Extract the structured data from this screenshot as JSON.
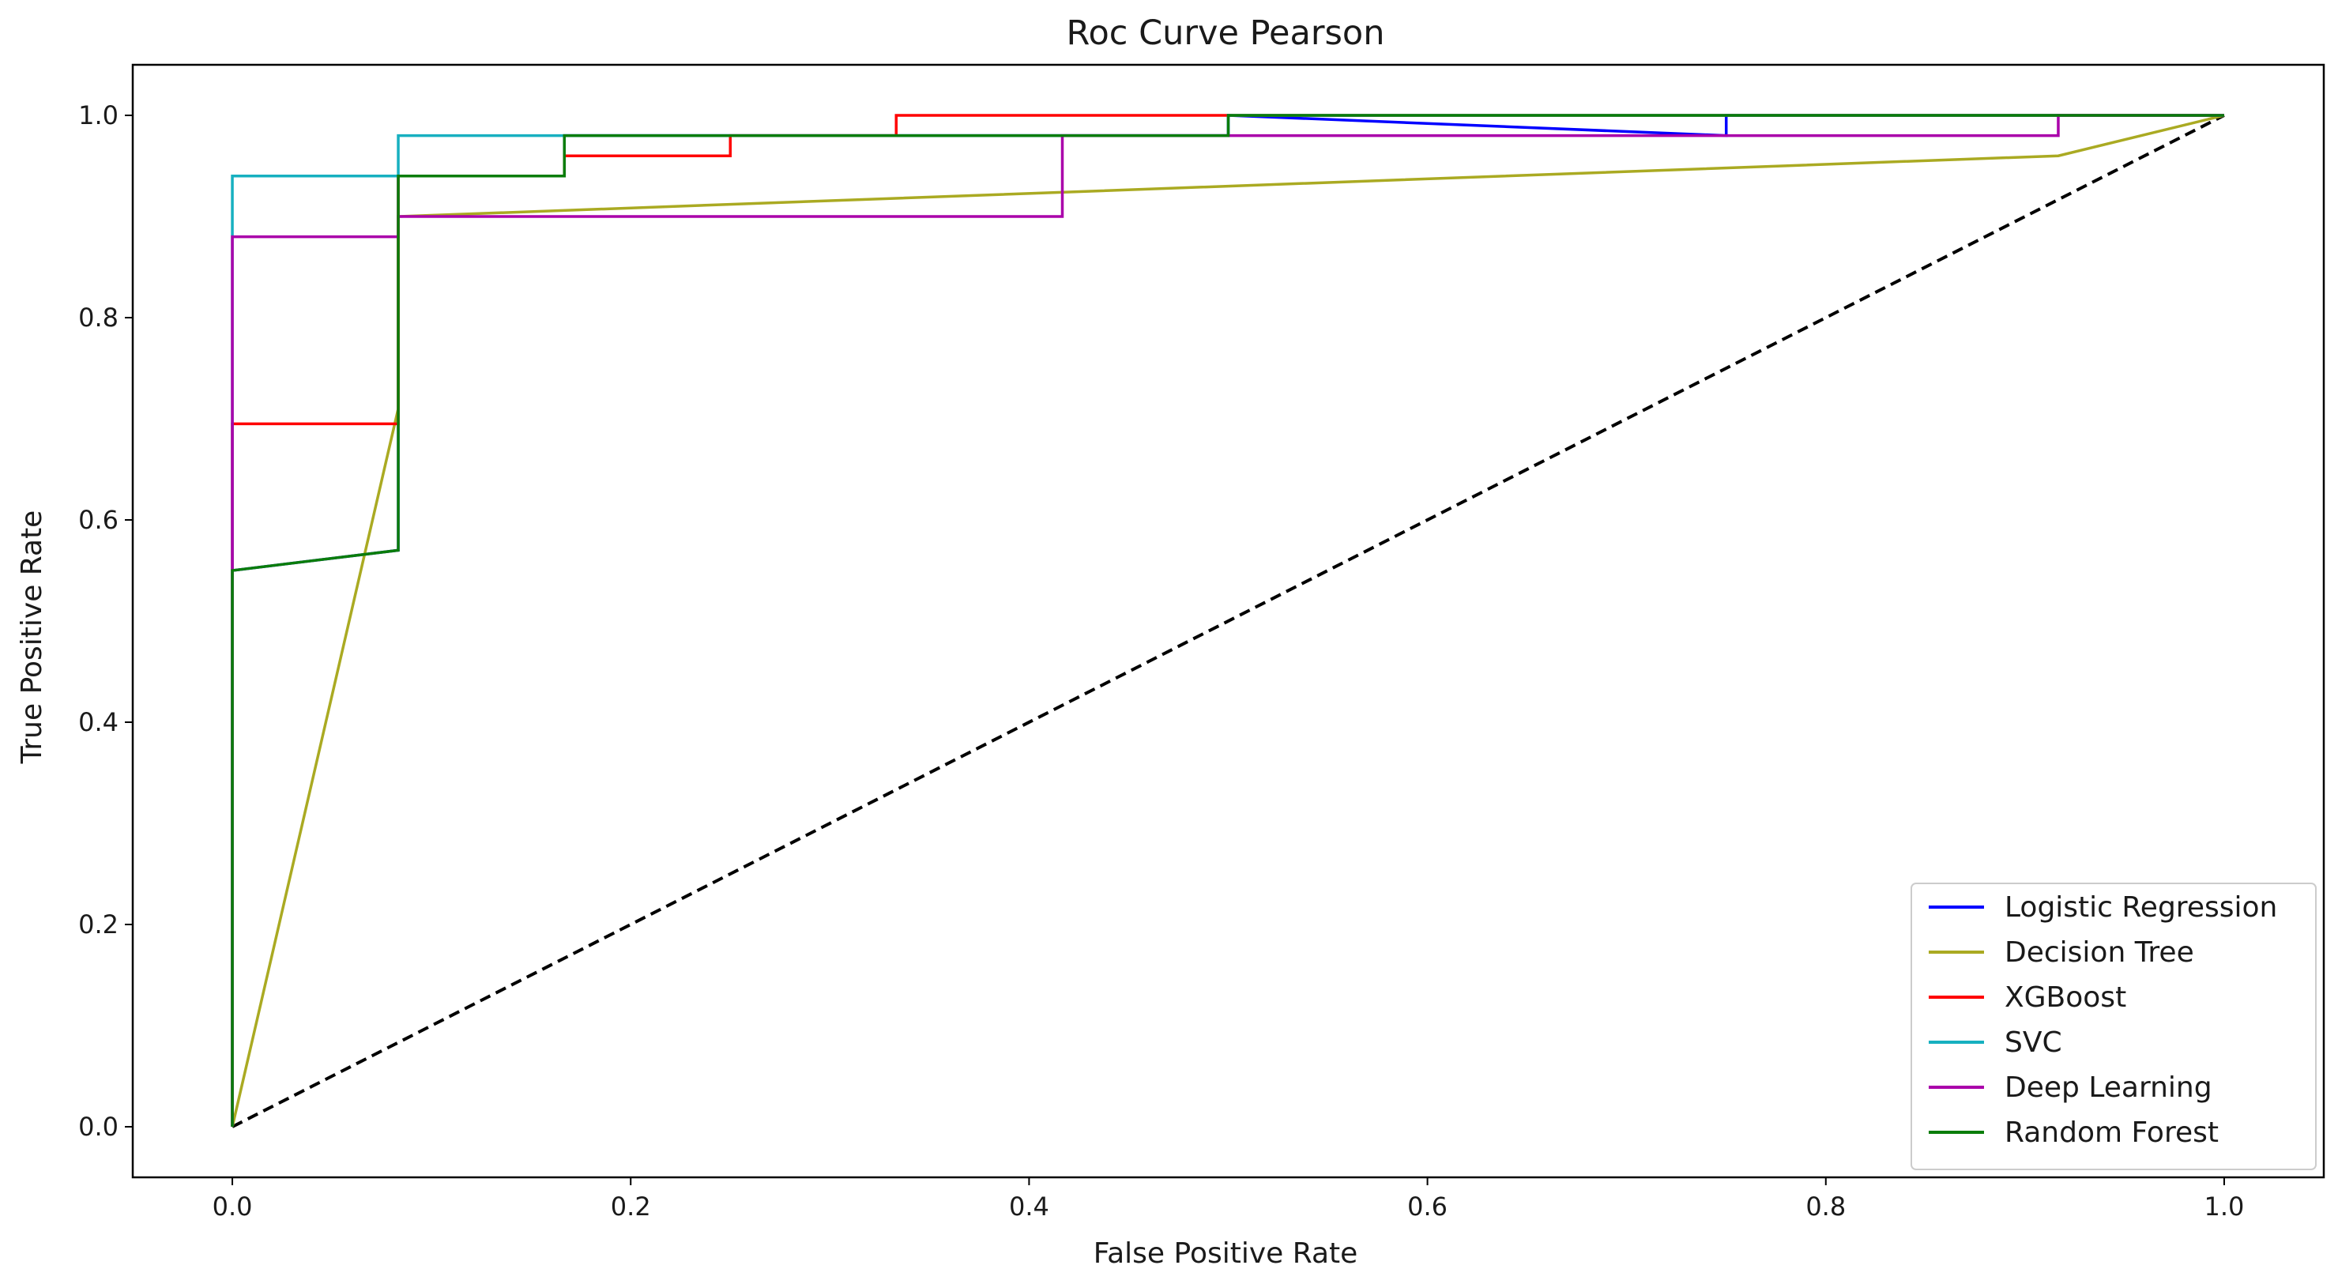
{
  "chart_data": {
    "type": "line",
    "title": "Roc Curve Pearson",
    "xlabel": "False Positive Rate",
    "ylabel": "True Positive Rate",
    "xlim": [
      -0.05,
      1.05
    ],
    "ylim": [
      -0.05,
      1.05
    ],
    "xticks": [
      0.0,
      0.2,
      0.4,
      0.6,
      0.8,
      1.0
    ],
    "yticks": [
      0.0,
      0.2,
      0.4,
      0.6,
      0.8,
      1.0
    ],
    "xtick_labels": [
      "0.0",
      "0.2",
      "0.4",
      "0.6",
      "0.8",
      "1.0"
    ],
    "ytick_labels": [
      "0.0",
      "0.2",
      "0.4",
      "0.6",
      "0.8",
      "1.0"
    ],
    "grid": false,
    "legend_position": "lower-right",
    "diagonal": {
      "x": [
        0,
        1
      ],
      "y": [
        0,
        1
      ],
      "color": "#000000",
      "dashed": true
    },
    "series": [
      {
        "name": "Logistic Regression",
        "color": "#0000ff",
        "x": [
          0,
          0,
          0.0833,
          0.0833,
          0.1667,
          0.1667,
          0.5,
          0.5,
          0.75,
          0.75,
          1.0
        ],
        "y": [
          0,
          0.55,
          0.57,
          0.94,
          0.94,
          0.98,
          0.98,
          1.0,
          0.98,
          1.0,
          1.0
        ]
      },
      {
        "name": "Decision Tree",
        "color": "#aaaa22",
        "x": [
          0,
          0.0833,
          0.0833,
          0.9167,
          1.0
        ],
        "y": [
          0,
          0.71,
          0.9,
          0.96,
          1.0
        ]
      },
      {
        "name": "XGBoost",
        "color": "#ff0000",
        "x": [
          0,
          0,
          0.0833,
          0.0833,
          0.1667,
          0.1667,
          0.25,
          0.25,
          0.3333,
          0.3333,
          1.0
        ],
        "y": [
          0,
          0.695,
          0.695,
          0.94,
          0.94,
          0.96,
          0.96,
          0.98,
          0.98,
          1.0,
          1.0
        ]
      },
      {
        "name": "SVC",
        "color": "#17b0c0",
        "x": [
          0,
          0,
          0.0833,
          0.0833,
          0.5,
          0.5,
          1.0
        ],
        "y": [
          0,
          0.94,
          0.94,
          0.98,
          0.98,
          1.0,
          1.0
        ]
      },
      {
        "name": "Deep Learning",
        "color": "#aa00aa",
        "x": [
          0,
          0,
          0.0833,
          0.0833,
          0.4167,
          0.4167,
          0.9167,
          0.9167,
          1.0
        ],
        "y": [
          0,
          0.88,
          0.88,
          0.9,
          0.9,
          0.98,
          0.98,
          1.0,
          1.0
        ]
      },
      {
        "name": "Random Forest",
        "color": "#0a7d0a",
        "x": [
          0,
          0,
          0.0833,
          0.0833,
          0.1667,
          0.1667,
          0.5,
          0.5,
          1.0
        ],
        "y": [
          0,
          0.55,
          0.57,
          0.94,
          0.94,
          0.98,
          0.98,
          1.0,
          1.0
        ]
      }
    ]
  }
}
